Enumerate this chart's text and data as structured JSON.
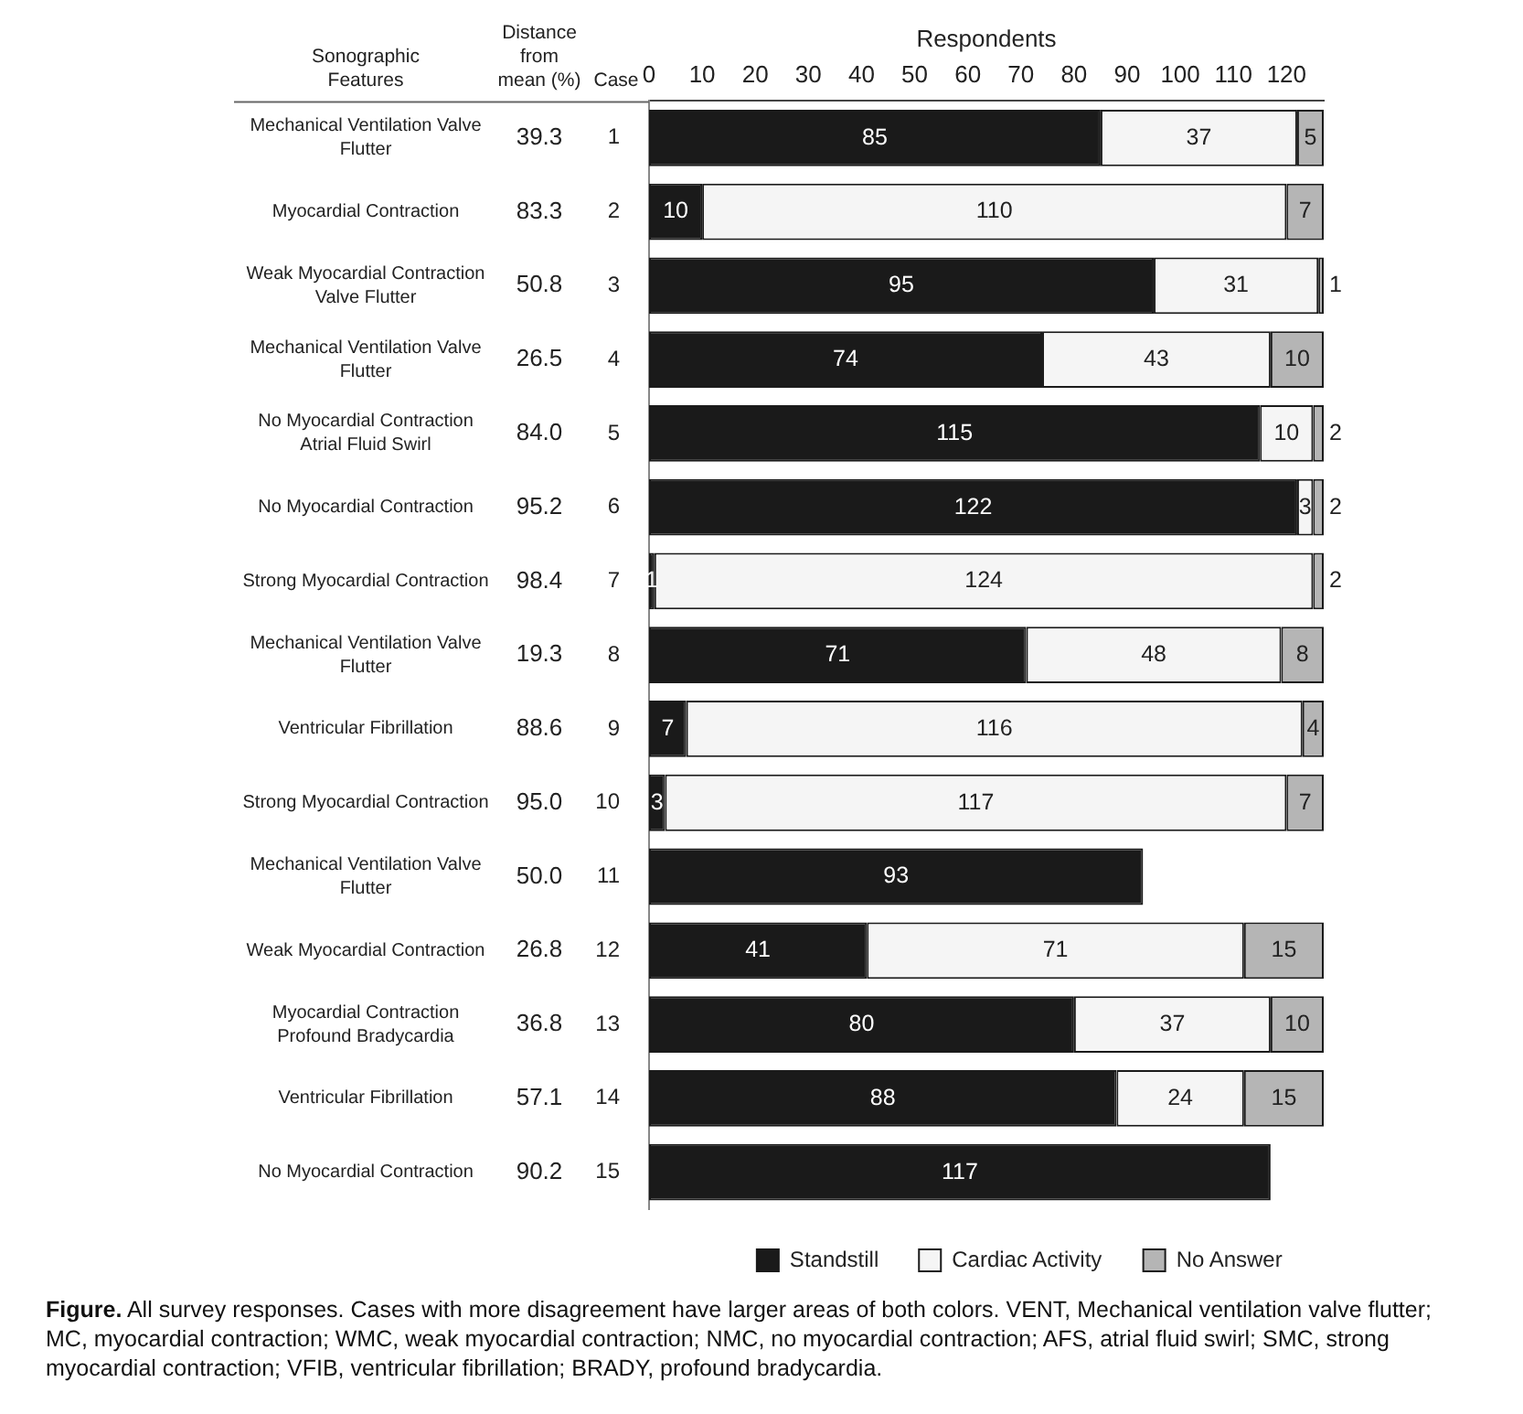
{
  "chart_data": {
    "type": "bar",
    "orientation": "horizontal",
    "stacked": true,
    "xlabel": "Respondents",
    "ylabel": "Case",
    "categories": [
      "1",
      "2",
      "3",
      "4",
      "5",
      "6",
      "7",
      "8",
      "9",
      "10",
      "11",
      "12",
      "13",
      "14",
      "15"
    ],
    "series": [
      {
        "name": "Standstill",
        "color": "#1a1a1a",
        "values": [
          85,
          10,
          95,
          74,
          115,
          122,
          1,
          71,
          7,
          3,
          93,
          41,
          80,
          88,
          117
        ]
      },
      {
        "name": "Cardiac Activity",
        "color": "#f5f5f5",
        "values": [
          37,
          110,
          31,
          43,
          10,
          3,
          124,
          48,
          116,
          117,
          null,
          71,
          37,
          24,
          null
        ]
      },
      {
        "name": "No Answer",
        "color": "#b5b5b5",
        "values": [
          5,
          7,
          1,
          10,
          2,
          2,
          2,
          8,
          4,
          7,
          null,
          15,
          10,
          15,
          null
        ]
      }
    ],
    "xlim": [
      0,
      127
    ],
    "xticks": [
      0,
      10,
      20,
      30,
      40,
      50,
      60,
      70,
      80,
      90,
      100,
      110,
      120
    ],
    "data_labels": true,
    "legend": "bottom",
    "grid": false,
    "annotations": [
      "Sonographic Features",
      "Distance from mean (%)",
      "Figure. All survey responses. Cases with more disagreement have larger areas of both colors. VENT, Mechanical ventilation valve flutter; MC, myocardial contraction; WMC, weak myocardial contraction; NMC, no myocardial contraction; AFS, atrial fluid swirl; SMC, strong myocardial contraction; VFIB, ventricular fibrillation; BRADY, profound bradycardia.",
      "Mechanical Ventilation Valve Flutter",
      "39.3",
      "Myocardial Contraction",
      "83.3",
      "Weak Myocardial Contraction Valve Flutter",
      "50.8",
      "Mechanical Ventilation Valve Flutter",
      "26.5",
      "No Myocardial Contraction Atrial Fluid Swirl",
      "84.0",
      "No Myocardial Contraction",
      "95.2",
      "Strong Myocardial Contraction",
      "98.4",
      "Mechanical Ventilation Valve Flutter",
      "19.3",
      "Ventricular Fibrillation",
      "88.6",
      "Strong Myocardial Contraction",
      "95.0",
      "Mechanical Ventilation Valve Flutter",
      "50.0",
      "Weak Myocardial Contraction",
      "26.8",
      "Myocardial Contraction Profound Bradycardia",
      "36.8",
      "Ventricular Fibrillation",
      "57.1",
      "No Myocardial Contraction",
      "90.2"
    ]
  }
}
